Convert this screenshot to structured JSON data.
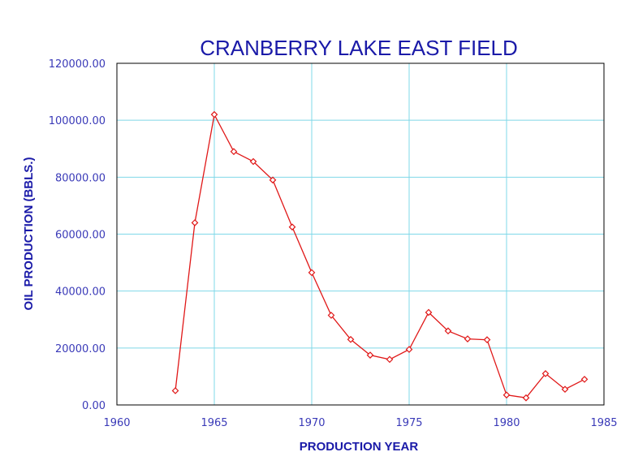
{
  "chart_data": {
    "type": "line",
    "title": "CRANBERRY LAKE EAST FIELD",
    "xlabel": "PRODUCTION YEAR",
    "ylabel": "OIL PRODUCTION (BBLS.)",
    "xlim": [
      1960,
      1985
    ],
    "ylim": [
      0,
      120000
    ],
    "x_ticks": [
      1960,
      1965,
      1970,
      1975,
      1980,
      1985
    ],
    "y_ticks": [
      0,
      20000,
      40000,
      60000,
      80000,
      100000,
      120000
    ],
    "x_tick_labels": [
      "1960",
      "1965",
      "1970",
      "1975",
      "1980",
      "1985"
    ],
    "y_tick_labels": [
      "0.00",
      "20000.00",
      "40000.00",
      "60000.00",
      "80000.00",
      "100000.00",
      "120000.00"
    ],
    "grid": true,
    "series": [
      {
        "color": "#e01818",
        "marker": "diamond",
        "x": [
          1963,
          1964,
          1965,
          1966,
          1967,
          1968,
          1969,
          1970,
          1971,
          1972,
          1973,
          1974,
          1975,
          1976,
          1977,
          1978,
          1979,
          1980,
          1981,
          1982,
          1983,
          1984
        ],
        "values": [
          5000,
          64000,
          102000,
          89000,
          85500,
          79000,
          62500,
          46500,
          31500,
          23000,
          17500,
          16000,
          19500,
          32500,
          26000,
          23200,
          22900,
          3500,
          2500,
          11000,
          5500,
          9000
        ]
      }
    ]
  }
}
